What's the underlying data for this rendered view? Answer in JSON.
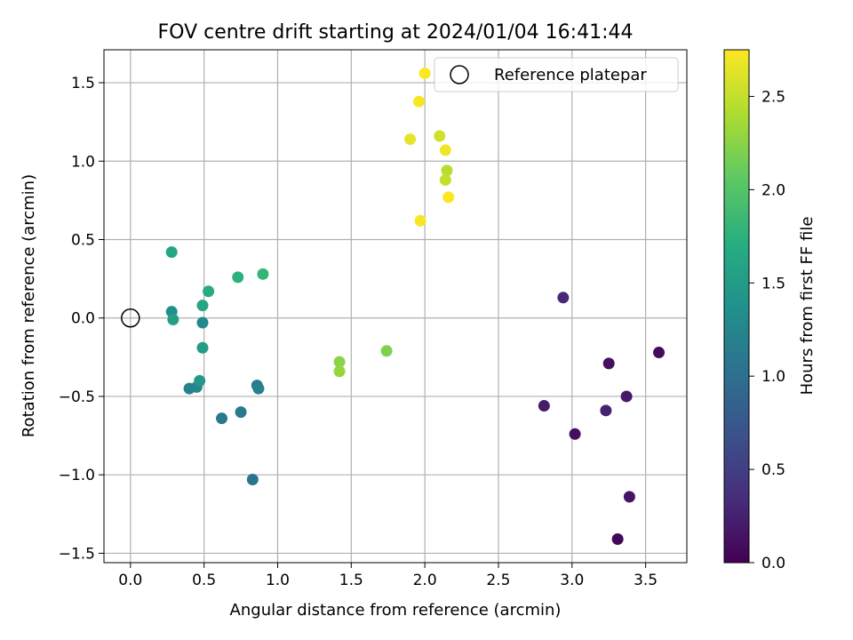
{
  "chart_data": {
    "type": "scatter",
    "title": "FOV centre drift starting at 2024/01/04 16:41:44",
    "xlabel": "Angular distance from reference (arcmin)",
    "ylabel": "Rotation from reference (arcmin)",
    "xlim": [
      -0.18,
      3.78
    ],
    "ylim": [
      -1.56,
      1.71
    ],
    "xticks": [
      0.0,
      0.5,
      1.0,
      1.5,
      2.0,
      2.5,
      3.0,
      3.5
    ],
    "yticks": [
      -1.5,
      -1.0,
      -0.5,
      0.0,
      0.5,
      1.0,
      1.5
    ],
    "xtick_labels": [
      "0.0",
      "0.5",
      "1.0",
      "1.5",
      "2.0",
      "2.5",
      "3.0",
      "3.5"
    ],
    "ytick_labels": [
      "−1.5",
      "−1.0",
      "−0.5",
      "0.0",
      "0.5",
      "1.0",
      "1.5"
    ],
    "grid": true,
    "colormap": "viridis",
    "colorbar": {
      "label": "Hours from first FF file",
      "range": [
        0.0,
        2.75
      ],
      "ticks": [
        0.0,
        0.5,
        1.0,
        1.5,
        2.0,
        2.5
      ],
      "tick_labels": [
        "0.0",
        "0.5",
        "1.0",
        "1.5",
        "2.0",
        "2.5"
      ]
    },
    "legend": {
      "position": "top-right",
      "entries": [
        {
          "label": "Reference platepar",
          "marker": "open-circle"
        }
      ]
    },
    "reference_point": {
      "x": 0.0,
      "y": 0.0
    },
    "points": [
      {
        "x": 3.31,
        "y": -1.41,
        "hours": 0.05
      },
      {
        "x": 3.02,
        "y": -0.74,
        "hours": 0.1
      },
      {
        "x": 3.39,
        "y": -1.14,
        "hours": 0.15
      },
      {
        "x": 2.81,
        "y": -0.56,
        "hours": 0.2
      },
      {
        "x": 3.59,
        "y": -0.22,
        "hours": 0.08
      },
      {
        "x": 3.25,
        "y": -0.29,
        "hours": 0.12
      },
      {
        "x": 3.37,
        "y": -0.5,
        "hours": 0.18
      },
      {
        "x": 3.23,
        "y": -0.59,
        "hours": 0.25
      },
      {
        "x": 2.94,
        "y": 0.13,
        "hours": 0.3
      },
      {
        "x": 0.83,
        "y": -1.03,
        "hours": 1.05
      },
      {
        "x": 0.62,
        "y": -0.64,
        "hours": 1.1
      },
      {
        "x": 0.75,
        "y": -0.6,
        "hours": 1.12
      },
      {
        "x": 0.86,
        "y": -0.43,
        "hours": 1.15
      },
      {
        "x": 0.87,
        "y": -0.45,
        "hours": 1.17
      },
      {
        "x": 0.4,
        "y": -0.45,
        "hours": 1.2
      },
      {
        "x": 0.45,
        "y": -0.44,
        "hours": 1.25
      },
      {
        "x": 0.49,
        "y": -0.03,
        "hours": 1.28
      },
      {
        "x": 0.28,
        "y": 0.04,
        "hours": 1.35
      },
      {
        "x": 0.47,
        "y": -0.4,
        "hours": 1.45
      },
      {
        "x": 0.49,
        "y": -0.19,
        "hours": 1.5
      },
      {
        "x": 0.29,
        "y": -0.01,
        "hours": 1.55
      },
      {
        "x": 0.49,
        "y": 0.08,
        "hours": 1.6
      },
      {
        "x": 0.28,
        "y": 0.42,
        "hours": 1.62
      },
      {
        "x": 0.53,
        "y": 0.17,
        "hours": 1.68
      },
      {
        "x": 0.73,
        "y": 0.26,
        "hours": 1.75
      },
      {
        "x": 0.9,
        "y": 0.28,
        "hours": 1.8
      },
      {
        "x": 1.74,
        "y": -0.21,
        "hours": 2.2
      },
      {
        "x": 1.42,
        "y": -0.28,
        "hours": 2.25
      },
      {
        "x": 1.42,
        "y": -0.34,
        "hours": 2.3
      },
      {
        "x": 2.15,
        "y": 0.94,
        "hours": 2.45
      },
      {
        "x": 2.14,
        "y": 0.88,
        "hours": 2.5
      },
      {
        "x": 2.1,
        "y": 1.16,
        "hours": 2.55
      },
      {
        "x": 1.9,
        "y": 1.14,
        "hours": 2.65
      },
      {
        "x": 2.14,
        "y": 1.07,
        "hours": 2.7
      },
      {
        "x": 1.97,
        "y": 0.62,
        "hours": 2.72
      },
      {
        "x": 2.16,
        "y": 0.77,
        "hours": 2.74
      },
      {
        "x": 1.96,
        "y": 1.38,
        "hours": 2.73
      },
      {
        "x": 2.0,
        "y": 1.56,
        "hours": 2.75
      }
    ]
  }
}
